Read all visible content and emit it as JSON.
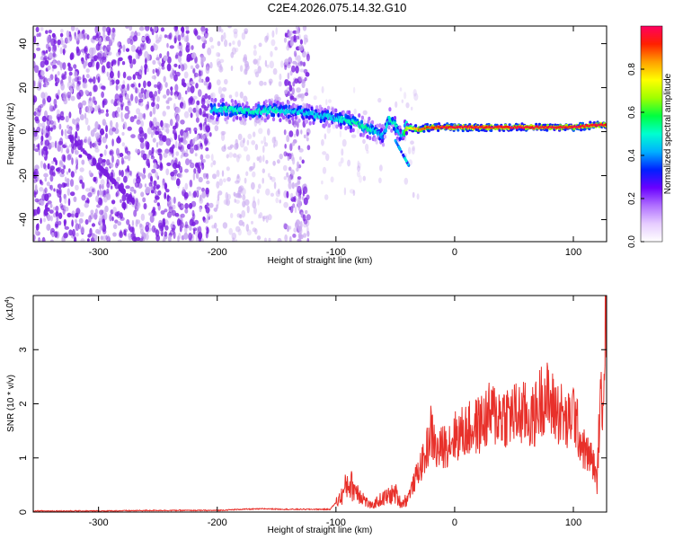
{
  "page_title": "C2E4.2026.075.14.32.G10",
  "colors": {
    "scatter_purple": "#7a1fe0",
    "scatter_light": "#c9aaf0",
    "snr_line": "#e8302a",
    "axis": "#000000"
  },
  "chart_data": [
    {
      "type": "heatmap",
      "title": "C2E4.2026.075.14.32.G10",
      "xlabel": "Height of straight line (km)",
      "ylabel": "Frequency (Hz)",
      "xlim": [
        -355,
        128
      ],
      "ylim": [
        -50,
        48
      ],
      "x_ticks": [
        -300,
        -200,
        -100,
        0,
        100
      ],
      "x_tick_labels": [
        "-300",
        "-200",
        "-100",
        "0",
        "100"
      ],
      "y_ticks": [
        -40,
        -20,
        0,
        20,
        40
      ],
      "y_tick_labels": [
        "-40",
        "-20",
        "0",
        "20",
        "40"
      ],
      "colorbar": {
        "label": "Normalized spectral amplitude",
        "range": [
          0,
          1
        ],
        "ticks": [
          0,
          0.2,
          0.4,
          0.6,
          0.8
        ],
        "tick_labels": [
          "0.0",
          "0.2",
          "0.4",
          "0.6",
          "0.8"
        ],
        "colors": [
          "#ffffff",
          "#e6ccff",
          "#b070ff",
          "#6a00ff",
          "#0020ff",
          "#00b0ff",
          "#00ffd0",
          "#00ff40",
          "#a0ff00",
          "#ffff00",
          "#ffa000",
          "#ff2000",
          "#ff0060"
        ]
      },
      "signal_track": {
        "x": [
          -205,
          -190,
          -170,
          -150,
          -140,
          -130,
          -120,
          -110,
          -100,
          -90,
          -80,
          -70,
          -60,
          -55,
          -50,
          -45,
          -40,
          -30,
          -20,
          -10,
          0,
          20,
          40,
          60,
          80,
          100,
          120,
          128
        ],
        "y": [
          10,
          10,
          9,
          10,
          9,
          9,
          8,
          7,
          6,
          5,
          3,
          1,
          -2,
          6,
          3,
          -2,
          2,
          1,
          2,
          2,
          2,
          2,
          2,
          2,
          2,
          2,
          3,
          3
        ],
        "amplitude": [
          0.45,
          0.5,
          0.5,
          0.5,
          0.45,
          0.45,
          0.45,
          0.45,
          0.45,
          0.5,
          0.55,
          0.5,
          0.4,
          0.5,
          0.5,
          0.4,
          0.7,
          0.85,
          0.9,
          0.95,
          0.95,
          0.95,
          0.95,
          0.95,
          0.95,
          0.95,
          0.95,
          0.95
        ]
      }
    },
    {
      "type": "line",
      "xlabel": "Height of straight line (km)",
      "ylabel": "SNR (10 * v/v)",
      "y_scale_label": "(x10",
      "y_scale_exp": "4",
      "y_scale_close": ")",
      "xlim": [
        -355,
        128
      ],
      "ylim": [
        0,
        4
      ],
      "x_ticks": [
        -300,
        -200,
        -100,
        0,
        100
      ],
      "x_tick_labels": [
        "-300",
        "-200",
        "-100",
        "0",
        "100"
      ],
      "y_ticks": [
        0,
        1,
        2,
        3
      ],
      "y_tick_labels": [
        "0",
        "1",
        "2",
        "3"
      ],
      "series": [
        {
          "name": "SNR",
          "x": [
            -355,
            -300,
            -250,
            -200,
            -180,
            -160,
            -140,
            -120,
            -105,
            -95,
            -90,
            -85,
            -80,
            -75,
            -70,
            -65,
            -60,
            -55,
            -50,
            -45,
            -40,
            -35,
            -30,
            -25,
            -20,
            -15,
            -10,
            -5,
            0,
            10,
            20,
            30,
            40,
            50,
            60,
            65,
            70,
            75,
            80,
            85,
            90,
            95,
            100,
            105,
            110,
            115,
            118,
            120,
            122,
            124,
            126,
            128
          ],
          "y": [
            0.02,
            0.02,
            0.03,
            0.03,
            0.05,
            0.06,
            0.05,
            0.05,
            0.05,
            0.3,
            0.55,
            0.45,
            0.35,
            0.2,
            0.1,
            0.2,
            0.25,
            0.3,
            0.35,
            0.15,
            0.25,
            0.5,
            0.8,
            1.0,
            1.5,
            1.1,
            1.2,
            1.3,
            1.4,
            1.5,
            1.6,
            1.8,
            1.8,
            1.8,
            1.8,
            1.7,
            1.9,
            2.2,
            2.0,
            1.9,
            1.8,
            1.6,
            1.9,
            1.4,
            1.1,
            1.0,
            0.8,
            0.5,
            1.8,
            2.0,
            3.2,
            4.0
          ]
        }
      ]
    }
  ]
}
